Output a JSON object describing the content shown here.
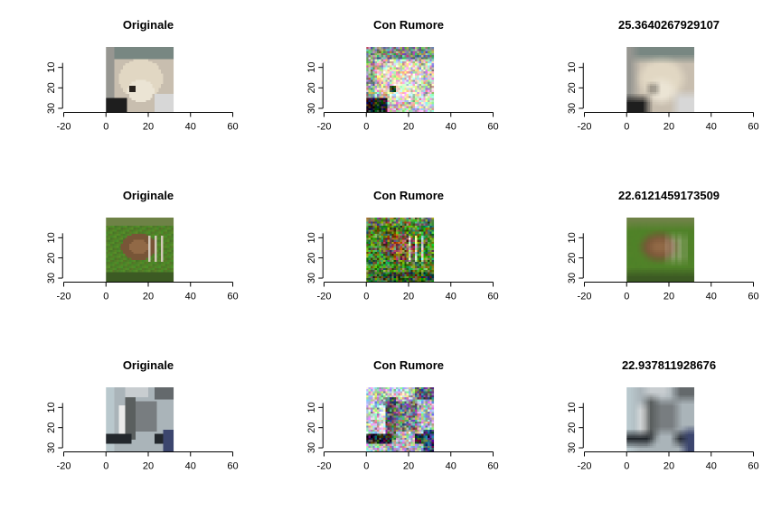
{
  "chart_data": [
    {
      "type": "image",
      "title": "Originale",
      "image": "dog-cream",
      "xlim": [
        -20,
        60
      ],
      "xticks": [
        -20,
        0,
        20,
        40,
        60
      ],
      "ylim": [
        0,
        32
      ],
      "yticks": [
        10,
        20,
        30
      ],
      "image_extent": {
        "x": [
          0,
          32
        ],
        "y": [
          0,
          32
        ]
      },
      "noise": false,
      "blur": false
    },
    {
      "type": "image",
      "title": "Con Rumore",
      "image": "dog-cream",
      "xlim": [
        -20,
        60
      ],
      "xticks": [
        -20,
        0,
        20,
        40,
        60
      ],
      "ylim": [
        0,
        32
      ],
      "yticks": [
        10,
        20,
        30
      ],
      "image_extent": {
        "x": [
          0,
          32
        ],
        "y": [
          0,
          32
        ]
      },
      "noise": true,
      "blur": false
    },
    {
      "type": "image",
      "title": "25.3640267929107",
      "image": "dog-cream",
      "xlim": [
        -20,
        60
      ],
      "xticks": [
        -20,
        0,
        20,
        40,
        60
      ],
      "ylim": [
        0,
        32
      ],
      "yticks": [
        10,
        20,
        30
      ],
      "image_extent": {
        "x": [
          0,
          32
        ],
        "y": [
          0,
          32
        ]
      },
      "noise": false,
      "blur": true
    },
    {
      "type": "image",
      "title": "Originale",
      "image": "deer-green",
      "xlim": [
        -20,
        60
      ],
      "xticks": [
        -20,
        0,
        20,
        40,
        60
      ],
      "ylim": [
        0,
        32
      ],
      "yticks": [
        10,
        20,
        30
      ],
      "image_extent": {
        "x": [
          0,
          32
        ],
        "y": [
          0,
          32
        ]
      },
      "noise": false,
      "blur": false
    },
    {
      "type": "image",
      "title": "Con Rumore",
      "image": "deer-green",
      "xlim": [
        -20,
        60
      ],
      "xticks": [
        -20,
        0,
        20,
        40,
        60
      ],
      "ylim": [
        0,
        32
      ],
      "yticks": [
        10,
        20,
        30
      ],
      "image_extent": {
        "x": [
          0,
          32
        ],
        "y": [
          0,
          32
        ]
      },
      "noise": true,
      "blur": false
    },
    {
      "type": "image",
      "title": "22.6121459173509",
      "image": "deer-green",
      "xlim": [
        -20,
        60
      ],
      "xticks": [
        -20,
        0,
        20,
        40,
        60
      ],
      "ylim": [
        0,
        32
      ],
      "yticks": [
        10,
        20,
        30
      ],
      "image_extent": {
        "x": [
          0,
          32
        ],
        "y": [
          0,
          32
        ]
      },
      "noise": false,
      "blur": true
    },
    {
      "type": "image",
      "title": "Originale",
      "image": "truck-grey",
      "xlim": [
        -20,
        60
      ],
      "xticks": [
        -20,
        0,
        20,
        40,
        60
      ],
      "ylim": [
        0,
        32
      ],
      "yticks": [
        10,
        20,
        30
      ],
      "image_extent": {
        "x": [
          0,
          32
        ],
        "y": [
          0,
          32
        ]
      },
      "noise": false,
      "blur": false
    },
    {
      "type": "image",
      "title": "Con Rumore",
      "image": "truck-grey",
      "xlim": [
        -20,
        60
      ],
      "xticks": [
        -20,
        0,
        20,
        40,
        60
      ],
      "ylim": [
        0,
        32
      ],
      "yticks": [
        10,
        20,
        30
      ],
      "image_extent": {
        "x": [
          0,
          32
        ],
        "y": [
          0,
          32
        ]
      },
      "noise": true,
      "blur": false
    },
    {
      "type": "image",
      "title": "22.937811928676",
      "image": "truck-grey",
      "xlim": [
        -20,
        60
      ],
      "xticks": [
        -20,
        0,
        20,
        40,
        60
      ],
      "ylim": [
        0,
        32
      ],
      "yticks": [
        10,
        20,
        30
      ],
      "image_extent": {
        "x": [
          0,
          32
        ],
        "y": [
          0,
          32
        ]
      },
      "noise": false,
      "blur": true
    }
  ]
}
